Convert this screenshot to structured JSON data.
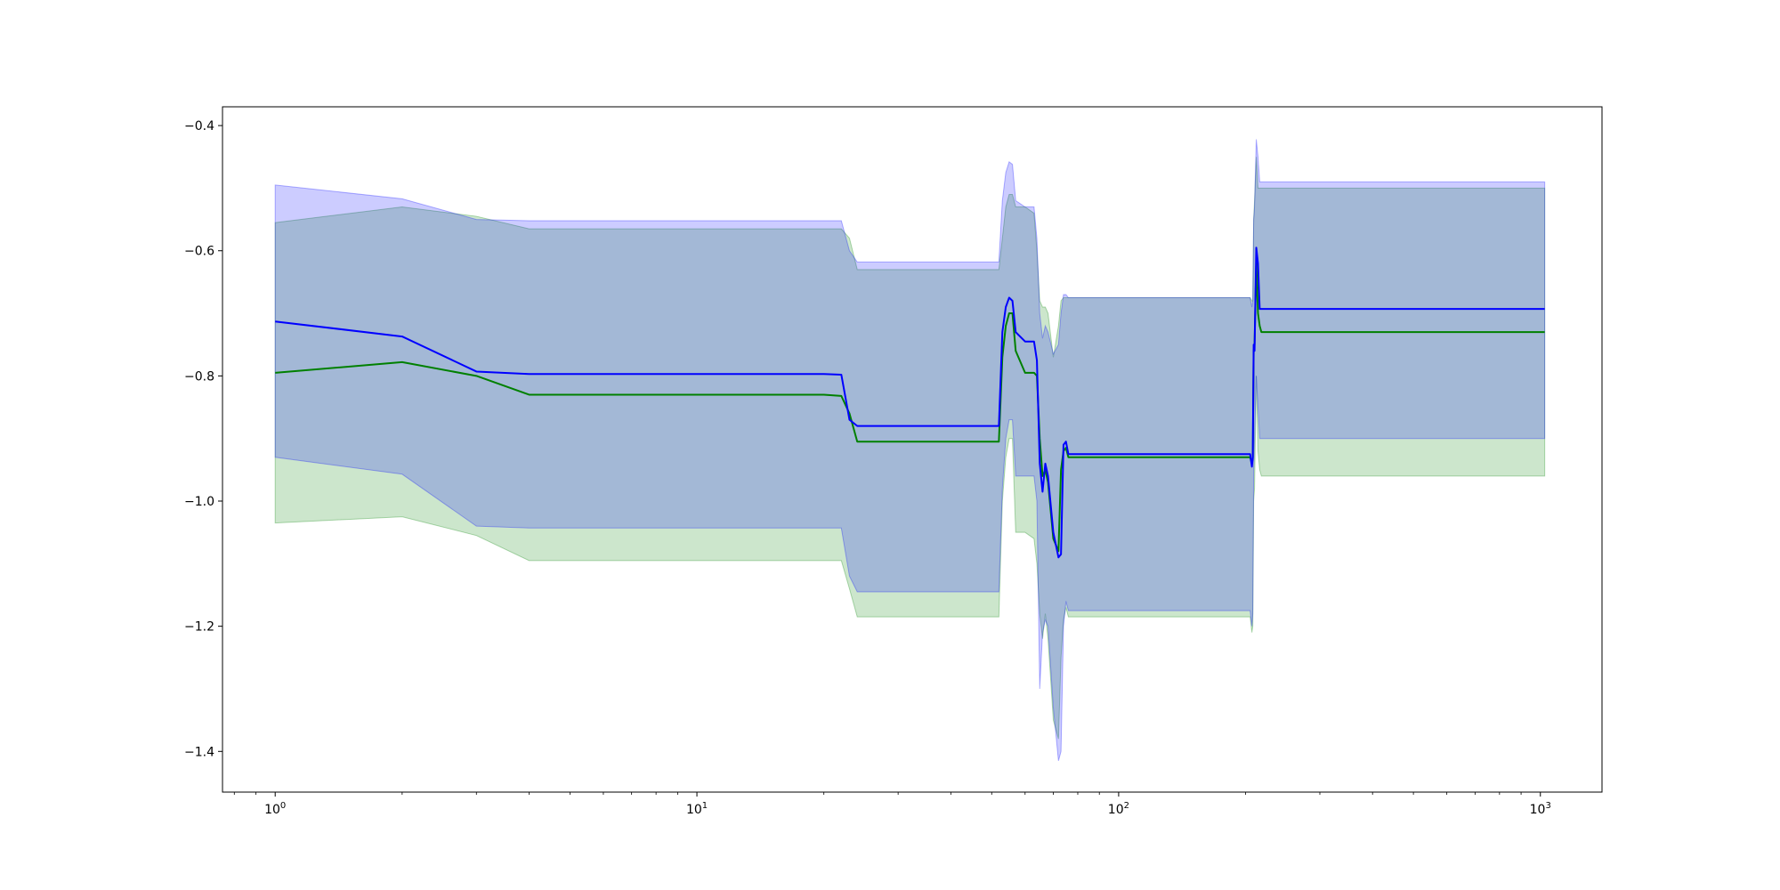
{
  "chart_data": {
    "type": "line",
    "title": "",
    "xlabel": "",
    "ylabel": "",
    "xscale": "log",
    "xlim": [
      0.75,
      1400
    ],
    "ylim": [
      -1.465,
      -0.37
    ],
    "grid": false,
    "x_ticks": [
      {
        "value": 1,
        "base": "10",
        "exp": "0"
      },
      {
        "value": 10,
        "base": "10",
        "exp": "1"
      },
      {
        "value": 100,
        "base": "10",
        "exp": "2"
      },
      {
        "value": 1000,
        "base": "10",
        "exp": "3"
      }
    ],
    "y_ticks": [
      {
        "value": -1.4,
        "label": "−1.4"
      },
      {
        "value": -1.2,
        "label": "−1.2"
      },
      {
        "value": -1.0,
        "label": "−1.0"
      },
      {
        "value": -0.8,
        "label": "−0.8"
      },
      {
        "value": -0.6,
        "label": "−0.6"
      },
      {
        "value": -0.4,
        "label": "−0.4"
      }
    ],
    "series": [
      {
        "color": "#008000",
        "band_color": "#008000",
        "band_opacity": 0.2,
        "x": [
          1,
          2,
          3,
          4,
          10,
          20,
          22,
          23,
          24,
          30,
          50,
          52,
          53,
          54,
          55,
          56,
          57,
          60,
          63,
          64,
          65,
          66,
          67,
          68,
          70,
          72,
          73,
          74,
          75,
          76,
          80,
          100,
          150,
          205,
          207,
          208,
          209,
          210,
          212,
          214,
          216,
          218,
          220,
          300,
          500,
          1024
        ],
        "y": [
          -0.795,
          -0.778,
          -0.8,
          -0.83,
          -0.83,
          -0.83,
          -0.832,
          -0.86,
          -0.905,
          -0.905,
          -0.905,
          -0.905,
          -0.77,
          -0.72,
          -0.7,
          -0.7,
          -0.76,
          -0.795,
          -0.795,
          -0.8,
          -0.9,
          -0.96,
          -0.95,
          -0.97,
          -1.06,
          -1.08,
          -0.95,
          -0.92,
          -0.915,
          -0.93,
          -0.93,
          -0.93,
          -0.93,
          -0.93,
          -0.94,
          -0.93,
          -0.76,
          -0.75,
          -0.62,
          -0.7,
          -0.72,
          -0.73,
          -0.73,
          -0.73,
          -0.73,
          -0.73
        ],
        "upper": [
          -0.555,
          -0.53,
          -0.545,
          -0.565,
          -0.565,
          -0.565,
          -0.565,
          -0.58,
          -0.63,
          -0.63,
          -0.63,
          -0.63,
          -0.58,
          -0.53,
          -0.51,
          -0.51,
          -0.53,
          -0.53,
          -0.54,
          -0.6,
          -0.68,
          -0.69,
          -0.69,
          -0.7,
          -0.77,
          -0.72,
          -0.68,
          -0.675,
          -0.675,
          -0.675,
          -0.675,
          -0.675,
          -0.675,
          -0.675,
          -0.68,
          -0.68,
          -0.55,
          -0.52,
          -0.45,
          -0.5,
          -0.5,
          -0.5,
          -0.5,
          -0.5,
          -0.5,
          -0.5
        ],
        "lower": [
          -1.035,
          -1.025,
          -1.055,
          -1.095,
          -1.095,
          -1.095,
          -1.095,
          -1.14,
          -1.185,
          -1.185,
          -1.185,
          -1.185,
          -1.0,
          -0.93,
          -0.9,
          -0.9,
          -1.05,
          -1.05,
          -1.06,
          -1.1,
          -1.18,
          -1.22,
          -1.18,
          -1.22,
          -1.35,
          -1.38,
          -1.25,
          -1.19,
          -1.17,
          -1.185,
          -1.185,
          -1.185,
          -1.185,
          -1.185,
          -1.21,
          -1.2,
          -1.0,
          -0.98,
          -0.8,
          -0.92,
          -0.95,
          -0.96,
          -0.96,
          -0.96,
          -0.96,
          -0.96
        ]
      },
      {
        "color": "#0000ff",
        "band_color": "#0000ff",
        "band_opacity": 0.2,
        "x": [
          1,
          2,
          3,
          4,
          10,
          20,
          22,
          23,
          24,
          30,
          50,
          52,
          53,
          54,
          55,
          56,
          57,
          60,
          63,
          64,
          65,
          66,
          67,
          68,
          70,
          72,
          73,
          74,
          75,
          76,
          80,
          100,
          150,
          205,
          207,
          208,
          209,
          210,
          212,
          214,
          216,
          218,
          220,
          300,
          500,
          1024
        ],
        "y": [
          -0.713,
          -0.737,
          -0.793,
          -0.797,
          -0.797,
          -0.797,
          -0.798,
          -0.87,
          -0.88,
          -0.88,
          -0.88,
          -0.88,
          -0.73,
          -0.69,
          -0.675,
          -0.68,
          -0.73,
          -0.745,
          -0.745,
          -0.775,
          -0.94,
          -0.985,
          -0.94,
          -0.96,
          -1.05,
          -1.09,
          -1.085,
          -0.91,
          -0.905,
          -0.925,
          -0.925,
          -0.925,
          -0.925,
          -0.925,
          -0.945,
          -0.93,
          -0.75,
          -0.76,
          -0.595,
          -0.62,
          -0.693,
          -0.693,
          -0.693,
          -0.693,
          -0.693,
          -0.693
        ],
        "upper": [
          -0.495,
          -0.517,
          -0.55,
          -0.552,
          -0.552,
          -0.552,
          -0.552,
          -0.6,
          -0.618,
          -0.618,
          -0.618,
          -0.618,
          -0.52,
          -0.475,
          -0.458,
          -0.462,
          -0.52,
          -0.53,
          -0.53,
          -0.58,
          -0.7,
          -0.74,
          -0.72,
          -0.73,
          -0.765,
          -0.75,
          -0.7,
          -0.67,
          -0.67,
          -0.675,
          -0.675,
          -0.675,
          -0.675,
          -0.675,
          -0.69,
          -0.68,
          -0.55,
          -0.53,
          -0.422,
          -0.45,
          -0.49,
          -0.49,
          -0.49,
          -0.49,
          -0.49,
          -0.49
        ],
        "lower": [
          -0.93,
          -0.957,
          -1.04,
          -1.043,
          -1.043,
          -1.043,
          -1.043,
          -1.12,
          -1.145,
          -1.145,
          -1.145,
          -1.145,
          -0.98,
          -0.9,
          -0.87,
          -0.87,
          -0.96,
          -0.96,
          -0.96,
          -1.0,
          -1.3,
          -1.21,
          -1.19,
          -1.2,
          -1.33,
          -1.415,
          -1.4,
          -1.2,
          -1.16,
          -1.175,
          -1.175,
          -1.175,
          -1.175,
          -1.175,
          -1.2,
          -1.18,
          -0.95,
          -0.9,
          -0.8,
          -0.85,
          -0.9,
          -0.9,
          -0.9,
          -0.9,
          -0.9,
          -0.9
        ]
      }
    ]
  }
}
